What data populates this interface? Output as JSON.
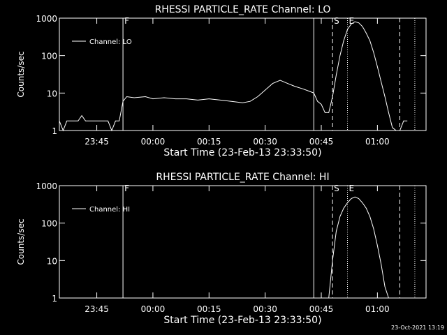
{
  "chart_data": [
    {
      "type": "line",
      "title": "RHESSI PARTICLE_RATE Channel: LO",
      "xlabel": "Start Time (23-Feb-13 23:33:50)",
      "ylabel": "Counts/sec",
      "log_y": true,
      "xlim": [
        "23:35",
        "01:13"
      ],
      "xticks": [
        "23:45",
        "00:00",
        "00:15",
        "00:30",
        "00:45",
        "01:00"
      ],
      "ylim": [
        1,
        1000
      ],
      "yticks": [
        1,
        10,
        100,
        1000
      ],
      "legend": "upper left",
      "markers": [
        {
          "x": "23:52",
          "style": "solid",
          "label": "F"
        },
        {
          "x": "00:43",
          "style": "solid"
        },
        {
          "x": "00:48",
          "style": "dashed",
          "label": "S"
        },
        {
          "x": "00:52",
          "style": "dotted",
          "label": "E"
        },
        {
          "x": "01:06",
          "style": "dashed"
        },
        {
          "x": "01:10",
          "style": "dotted"
        }
      ],
      "x": [
        "23:35",
        "23:36",
        "23:37",
        "23:40",
        "23:41",
        "23:42",
        "23:48",
        "23:49",
        "23:50",
        "23:51",
        "23:52",
        "23:53",
        "23:55",
        "23:58",
        "00:00",
        "00:03",
        "00:06",
        "00:09",
        "00:12",
        "00:15",
        "00:18",
        "00:21",
        "00:24",
        "00:26",
        "00:28",
        "00:30",
        "00:32",
        "00:34",
        "00:36",
        "00:38",
        "00:40",
        "00:42",
        "00:43",
        "00:44",
        "00:45",
        "00:46",
        "00:47",
        "00:48",
        "00:49",
        "00:50",
        "00:51",
        "00:52",
        "00:53",
        "00:54",
        "00:55",
        "00:56",
        "00:57",
        "00:58",
        "00:59",
        "01:00",
        "01:01",
        "01:02",
        "01:03",
        "01:04",
        "01:05",
        "01:06",
        "01:07",
        "01:08"
      ],
      "series": [
        {
          "name": "Channel: LO",
          "color": "#ffffff",
          "values": [
            1.8,
            1,
            1.8,
            1.8,
            2.5,
            1.8,
            1.8,
            1,
            1.8,
            1.8,
            6,
            8,
            7.5,
            8,
            7,
            7.5,
            7,
            7,
            6.5,
            7,
            6.5,
            6,
            5.5,
            6,
            8,
            12,
            18,
            22,
            18,
            15,
            13,
            11,
            10,
            6,
            5,
            3,
            3,
            8,
            30,
            100,
            250,
            500,
            700,
            800,
            750,
            600,
            400,
            250,
            120,
            50,
            20,
            8,
            3,
            1.2,
            1,
            1,
            1.8,
            1.8
          ]
        }
      ]
    },
    {
      "type": "line",
      "title": "RHESSI PARTICLE_RATE Channel: HI",
      "xlabel": "Start Time (23-Feb-13 23:33:50)",
      "ylabel": "Counts/sec",
      "log_y": true,
      "xlim": [
        "23:35",
        "01:13"
      ],
      "xticks": [
        "23:45",
        "00:00",
        "00:15",
        "00:30",
        "00:45",
        "01:00"
      ],
      "ylim": [
        1,
        1000
      ],
      "yticks": [
        1,
        10,
        100,
        1000
      ],
      "legend": "upper left",
      "markers": [
        {
          "x": "23:52",
          "style": "solid",
          "label": "F"
        },
        {
          "x": "00:43",
          "style": "solid"
        },
        {
          "x": "00:48",
          "style": "dashed",
          "label": "S"
        },
        {
          "x": "00:52",
          "style": "dotted",
          "label": "E"
        },
        {
          "x": "01:06",
          "style": "dashed"
        },
        {
          "x": "01:10",
          "style": "dotted"
        }
      ],
      "x": [
        "00:47",
        "00:48",
        "00:49",
        "00:50",
        "00:51",
        "00:52",
        "00:53",
        "00:54",
        "00:55",
        "00:56",
        "00:57",
        "00:58",
        "00:59",
        "01:00",
        "01:01",
        "01:02",
        "01:03"
      ],
      "series": [
        {
          "name": "Channel: HI",
          "color": "#ffffff",
          "values": [
            1,
            10,
            60,
            150,
            250,
            350,
            450,
            500,
            450,
            350,
            250,
            150,
            70,
            25,
            8,
            2,
            1
          ]
        }
      ]
    }
  ],
  "footer": "23-Oct-2021 13:19"
}
